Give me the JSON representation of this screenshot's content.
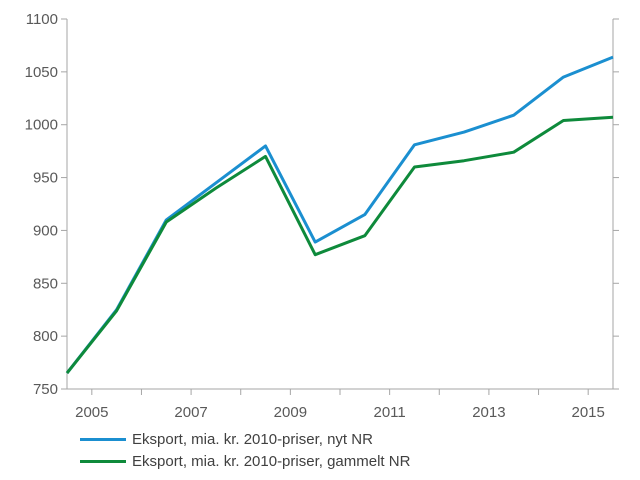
{
  "chart_data": {
    "type": "line",
    "x": [
      2004.5,
      2005.5,
      2006.5,
      2007.5,
      2008.5,
      2009.5,
      2010.5,
      2011.5,
      2012.5,
      2013.5,
      2014.5,
      2015.5
    ],
    "series": [
      {
        "name": "Eksport, mia. kr. 2010-priser, nyt NR",
        "color": "#1b8fd0",
        "values": [
          765,
          825,
          910,
          945,
          980,
          889,
          915,
          981,
          993,
          1009,
          1045,
          1064
        ]
      },
      {
        "name": "Eksport, mia. kr. 2010-priser, gammelt NR",
        "color": "#0e8a3b",
        "values": [
          765,
          824,
          908,
          940,
          970,
          877,
          895,
          960,
          966,
          974,
          1004,
          1007
        ]
      }
    ],
    "xlim": [
      2004.5,
      2015.5
    ],
    "ylim": [
      750,
      1100
    ],
    "xticks": [
      2005,
      2007,
      2009,
      2011,
      2013,
      2015
    ],
    "yticks": [
      750,
      800,
      850,
      900,
      950,
      1000,
      1050,
      1100
    ],
    "xtick_labels": [
      "2005",
      "2007",
      "2009",
      "2011",
      "2013",
      "2015"
    ],
    "ytick_labels": [
      "750",
      "800",
      "850",
      "900",
      "950",
      "1000",
      "1050",
      "1100"
    ],
    "axis_color": "#a6a6a6",
    "grid": false,
    "legend_position": "bottom-left"
  }
}
